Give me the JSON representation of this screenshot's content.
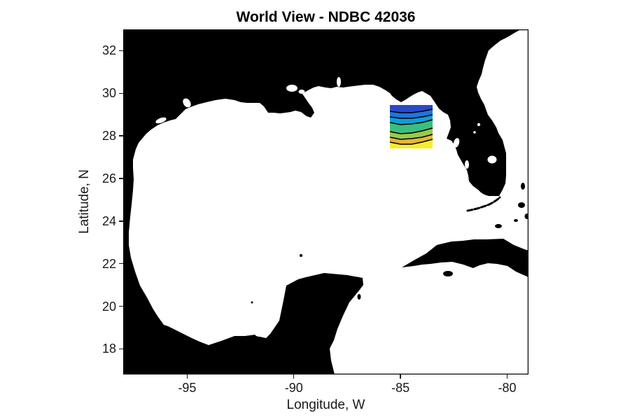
{
  "figure": {
    "title": "World View - NDBC 42036",
    "xlabel": "Longitude, W",
    "ylabel": "Latitude, N"
  },
  "axes": {
    "x": {
      "lim": [
        -98.0,
        -79.0
      ],
      "ticks": [
        -95,
        -90,
        -85,
        -80
      ],
      "tick_labels": [
        "-95",
        "-90",
        "-85",
        "-80"
      ]
    },
    "y": {
      "lim": [
        16.8,
        33.0
      ],
      "ticks": [
        32,
        30,
        28,
        26,
        24,
        22,
        20,
        18
      ],
      "tick_labels": [
        "32",
        "30",
        "28",
        "26",
        "24",
        "22",
        "20",
        "18"
      ]
    },
    "tick_color": "#1a1a1a"
  },
  "map": {
    "region": "Gulf of Mexico",
    "land_color": "#000000",
    "water_color": "#ffffff",
    "contour_patch": {
      "lon_range": [
        -85.5,
        -83.5
      ],
      "lat_range": [
        27.4,
        29.5
      ],
      "band_colors": [
        "#2a49c8",
        "#2173dc",
        "#0d9fd6",
        "#3dbd7d",
        "#9ac94f",
        "#e6b53a",
        "#f5ee2a"
      ],
      "contour_line_color": "#000000"
    }
  }
}
